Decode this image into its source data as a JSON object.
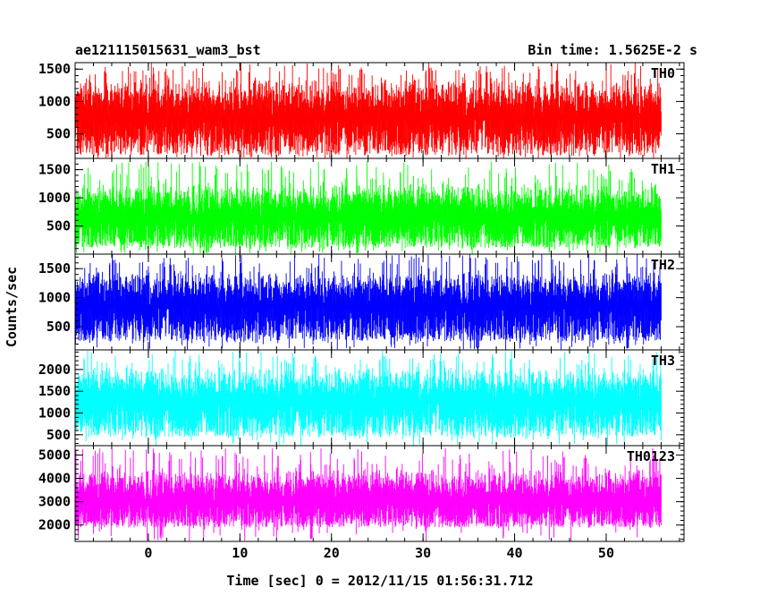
{
  "header": {
    "title": "ae121115015631_wam3_bst",
    "bin_time": "Bin time: 1.5625E-2 s"
  },
  "chart_data": {
    "type": "line",
    "title": "ae121115015631_wam3_bst",
    "subtitle": "Bin time: 1.5625E-2 s",
    "xlabel": "Time [sec] 0 = 2012/11/15 01:56:31.712",
    "ylabel": "Counts/sec",
    "xlim": [
      -8.0,
      58.5
    ],
    "x_ticks": [
      0,
      10,
      20,
      30,
      40,
      50
    ],
    "x_tick_labels": [
      "0",
      "10",
      "20",
      "30",
      "40",
      "50"
    ],
    "x_data_range": [
      -8.0,
      56.0
    ],
    "bin_time": 0.015625,
    "grid": false,
    "legend": "none",
    "panels": [
      {
        "name": "TH0",
        "color": "#ff0000",
        "ylim": [
          120,
          1600
        ],
        "y_ticks": [
          500,
          1000,
          1500
        ],
        "y_tick_labels": [
          "500",
          "1000",
          "1500"
        ],
        "mean": 750,
        "typical_min": 170,
        "typical_max": 1400,
        "peak_max": 1600
      },
      {
        "name": "TH1",
        "color": "#00ff00",
        "ylim": [
          0,
          1700
        ],
        "y_ticks": [
          500,
          1000,
          1500
        ],
        "y_tick_labels": [
          "500",
          "1000",
          "1500"
        ],
        "mean": 650,
        "typical_min": 110,
        "typical_max": 1300,
        "peak_max": 1650
      },
      {
        "name": "TH2",
        "color": "#0000ff",
        "ylim": [
          100,
          1750
        ],
        "y_ticks": [
          500,
          1000,
          1500
        ],
        "y_tick_labels": [
          "500",
          "1000",
          "1500"
        ],
        "mean": 850,
        "typical_min": 250,
        "typical_max": 1500,
        "peak_max": 1750
      },
      {
        "name": "TH3",
        "color": "#00ffff",
        "ylim": [
          250,
          2450
        ],
        "y_ticks": [
          500,
          1000,
          1500,
          2000
        ],
        "y_tick_labels": [
          "500",
          "1000",
          "1500",
          "2000"
        ],
        "mean": 1250,
        "typical_min": 450,
        "typical_max": 2100,
        "peak_max": 2450
      },
      {
        "name": "TH0123",
        "color": "#ff00ff",
        "ylim": [
          1300,
          5400
        ],
        "y_ticks": [
          2000,
          3000,
          4000,
          5000
        ],
        "y_tick_labels": [
          "2000",
          "3000",
          "4000",
          "5000"
        ],
        "mean": 3000,
        "typical_min": 1900,
        "typical_max": 4500,
        "peak_max": 5300
      }
    ]
  }
}
